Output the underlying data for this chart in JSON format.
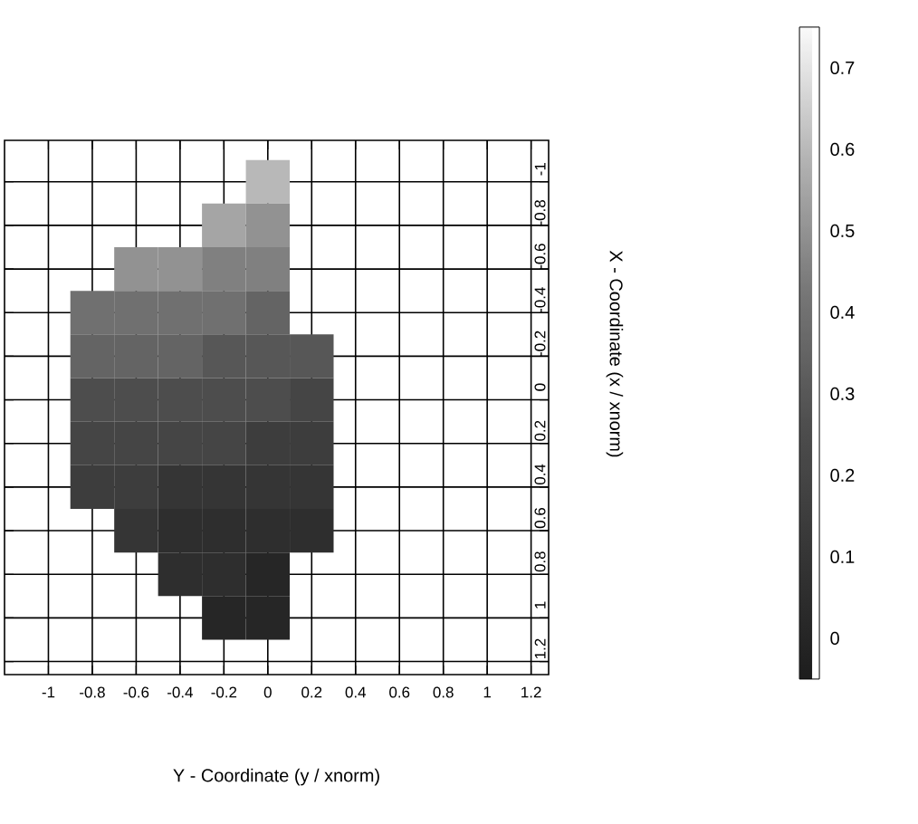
{
  "chart_data": {
    "type": "heatmap",
    "xlabel": "Y - Coordinate (y / xnorm)",
    "ylabel": "X - Coordinate (x / xnorm)",
    "categories": [
      "-1",
      "-0.8",
      "-0.6",
      "-0.4",
      "-0.2",
      "0",
      "0.2",
      "0.4",
      "0.6",
      "0.8",
      "1",
      "1.2"
    ],
    "y_categories": [
      "-1",
      "-0.8",
      "-0.6",
      "-0.4",
      "-0.2",
      "0",
      "0.2",
      "0.4",
      "0.6",
      "0.8",
      "1",
      "1.2"
    ],
    "cells": [
      [
        null,
        null,
        null,
        null,
        null,
        0.6,
        null,
        null,
        null,
        null,
        null,
        null
      ],
      [
        null,
        null,
        null,
        null,
        0.55,
        0.5,
        null,
        null,
        null,
        null,
        null,
        null
      ],
      [
        null,
        null,
        0.5,
        0.5,
        0.45,
        0.45,
        null,
        null,
        null,
        null,
        null,
        null
      ],
      [
        null,
        0.4,
        0.4,
        0.4,
        0.4,
        0.35,
        null,
        null,
        null,
        null,
        null,
        null
      ],
      [
        null,
        0.35,
        0.35,
        0.35,
        0.3,
        0.3,
        0.3,
        null,
        null,
        null,
        null,
        null
      ],
      [
        null,
        0.25,
        0.25,
        0.25,
        0.25,
        0.25,
        0.2,
        null,
        null,
        null,
        null,
        null
      ],
      [
        null,
        0.2,
        0.2,
        0.2,
        0.2,
        0.15,
        0.15,
        null,
        null,
        null,
        null,
        null
      ],
      [
        null,
        0.15,
        0.15,
        0.1,
        0.1,
        0.1,
        0.1,
        null,
        null,
        null,
        null,
        null
      ],
      [
        null,
        null,
        0.1,
        0.05,
        0.05,
        0.05,
        0.05,
        null,
        null,
        null,
        null,
        null
      ],
      [
        null,
        null,
        null,
        0.05,
        0.05,
        0.0,
        null,
        null,
        null,
        null,
        null,
        null
      ],
      [
        null,
        null,
        null,
        null,
        0.0,
        0.0,
        null,
        null,
        null,
        null,
        null,
        null
      ],
      [
        null,
        null,
        null,
        null,
        null,
        null,
        null,
        null,
        null,
        null,
        null,
        null
      ]
    ],
    "clim": [
      -0.05,
      0.75
    ],
    "cticks": [
      0,
      0.1,
      0.2,
      0.3,
      0.4,
      0.5,
      0.6,
      0.7
    ],
    "grid": true
  }
}
